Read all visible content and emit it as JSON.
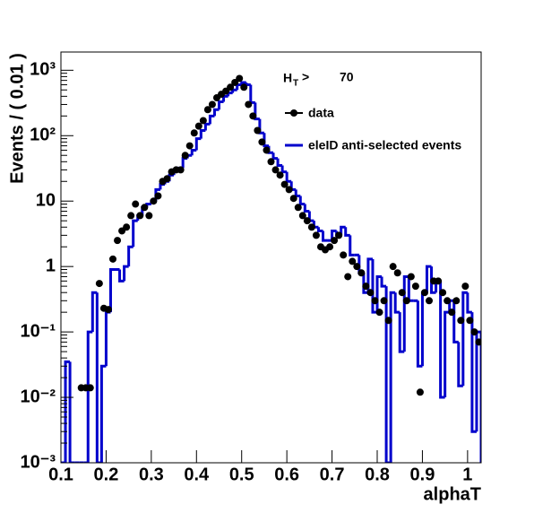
{
  "chart_data": {
    "type": "histogram",
    "y_label": "Events / ( 0.01 )",
    "x_label": "alphaT",
    "annotation": {
      "symbol": "H",
      "subscript": "T",
      "relation": ">",
      "value": 70
    },
    "log_y": true,
    "xlim": [
      0.1,
      1.03
    ],
    "ylim": [
      0.001,
      1900
    ],
    "xticks": [
      0.1,
      0.2,
      0.3,
      0.4,
      0.5,
      0.6,
      0.7,
      0.8,
      0.9,
      1
    ],
    "yticks": [
      {
        "value": 0.001,
        "label": "10⁻³"
      },
      {
        "value": 0.01,
        "label": "10⁻²"
      },
      {
        "value": 0.1,
        "label": "10⁻¹"
      },
      1,
      10,
      {
        "value": 100,
        "label": "10²"
      },
      {
        "value": 1000,
        "label": "10³"
      }
    ],
    "bins": [
      0.1,
      0.11,
      0.12,
      0.13,
      0.14,
      0.15,
      0.16,
      0.17,
      0.18,
      0.19,
      0.2,
      0.21,
      0.22,
      0.23,
      0.24,
      0.25,
      0.26,
      0.27,
      0.28,
      0.29,
      0.3,
      0.31,
      0.32,
      0.33,
      0.34,
      0.35,
      0.36,
      0.37,
      0.38,
      0.39,
      0.4,
      0.41,
      0.42,
      0.43,
      0.44,
      0.45,
      0.46,
      0.47,
      0.48,
      0.49,
      0.5,
      0.51,
      0.52,
      0.53,
      0.54,
      0.55,
      0.56,
      0.57,
      0.58,
      0.59,
      0.6,
      0.61,
      0.62,
      0.63,
      0.64,
      0.65,
      0.66,
      0.67,
      0.68,
      0.69,
      0.7,
      0.71,
      0.72,
      0.73,
      0.74,
      0.75,
      0.76,
      0.77,
      0.78,
      0.79,
      0.8,
      0.81,
      0.82,
      0.83,
      0.84,
      0.85,
      0.86,
      0.87,
      0.88,
      0.89,
      0.9,
      0.91,
      0.92,
      0.93,
      0.94,
      0.95,
      0.96,
      0.97,
      0.98,
      0.99,
      1.0,
      1.01,
      1.02,
      1.03
    ],
    "series": [
      {
        "name": "data",
        "color": "#000000",
        "style": "points",
        "values": [
          null,
          null,
          null,
          null,
          0.014,
          0.014,
          0.014,
          null,
          0.55,
          0.23,
          0.22,
          1.3,
          2.5,
          3.5,
          4,
          6,
          9,
          6,
          8,
          6,
          10,
          12,
          20,
          22,
          28,
          30,
          30,
          50,
          70,
          110,
          140,
          170,
          250,
          300,
          380,
          430,
          480,
          550,
          650,
          750,
          550,
          300,
          200,
          120,
          80,
          60,
          40,
          30,
          25,
          18,
          15,
          11,
          8,
          6,
          5,
          4,
          3,
          2,
          1.8,
          2,
          2.5,
          3,
          1.5,
          0.7,
          1.2,
          1.0,
          0.8,
          0.5,
          0.4,
          0.3,
          0.2,
          0.3,
          0.15,
          1.0,
          0.8,
          0.4,
          0.3,
          0.7,
          0.5,
          0.012,
          0.4,
          0.3,
          0.6,
          0.6,
          0.4,
          0.3,
          0.2,
          0.3,
          0.15,
          0.5,
          0.15,
          0.1,
          0.07
        ]
      },
      {
        "name": "eleID anti-selected events",
        "color": "#0000cc",
        "style": "step",
        "values": [
          null,
          0.035,
          null,
          null,
          null,
          null,
          0.1,
          0.4,
          null,
          0.03,
          0.2,
          0.9,
          0.9,
          0.6,
          1.0,
          2.0,
          5,
          6,
          8,
          9,
          10,
          15,
          18,
          20,
          25,
          30,
          32,
          45,
          50,
          60,
          90,
          120,
          150,
          200,
          250,
          330,
          400,
          450,
          500,
          600,
          650,
          600,
          320,
          180,
          110,
          70,
          55,
          45,
          35,
          28,
          20,
          15,
          12,
          9,
          7,
          5,
          4,
          3.5,
          2.5,
          2.5,
          3.5,
          3,
          4,
          3,
          1.5,
          1.5,
          0.8,
          0.4,
          1.3,
          0.2,
          0.7,
          0.5,
          null,
          0.4,
          0.2,
          0.05,
          0.7,
          0.3,
          0.3,
          0.03,
          0.4,
          1.0,
          0.4,
          0.6,
          0.01,
          0.2,
          0.3,
          0.07,
          0.015,
          0.4,
          0.2,
          0.003,
          0.1
        ]
      }
    ]
  }
}
